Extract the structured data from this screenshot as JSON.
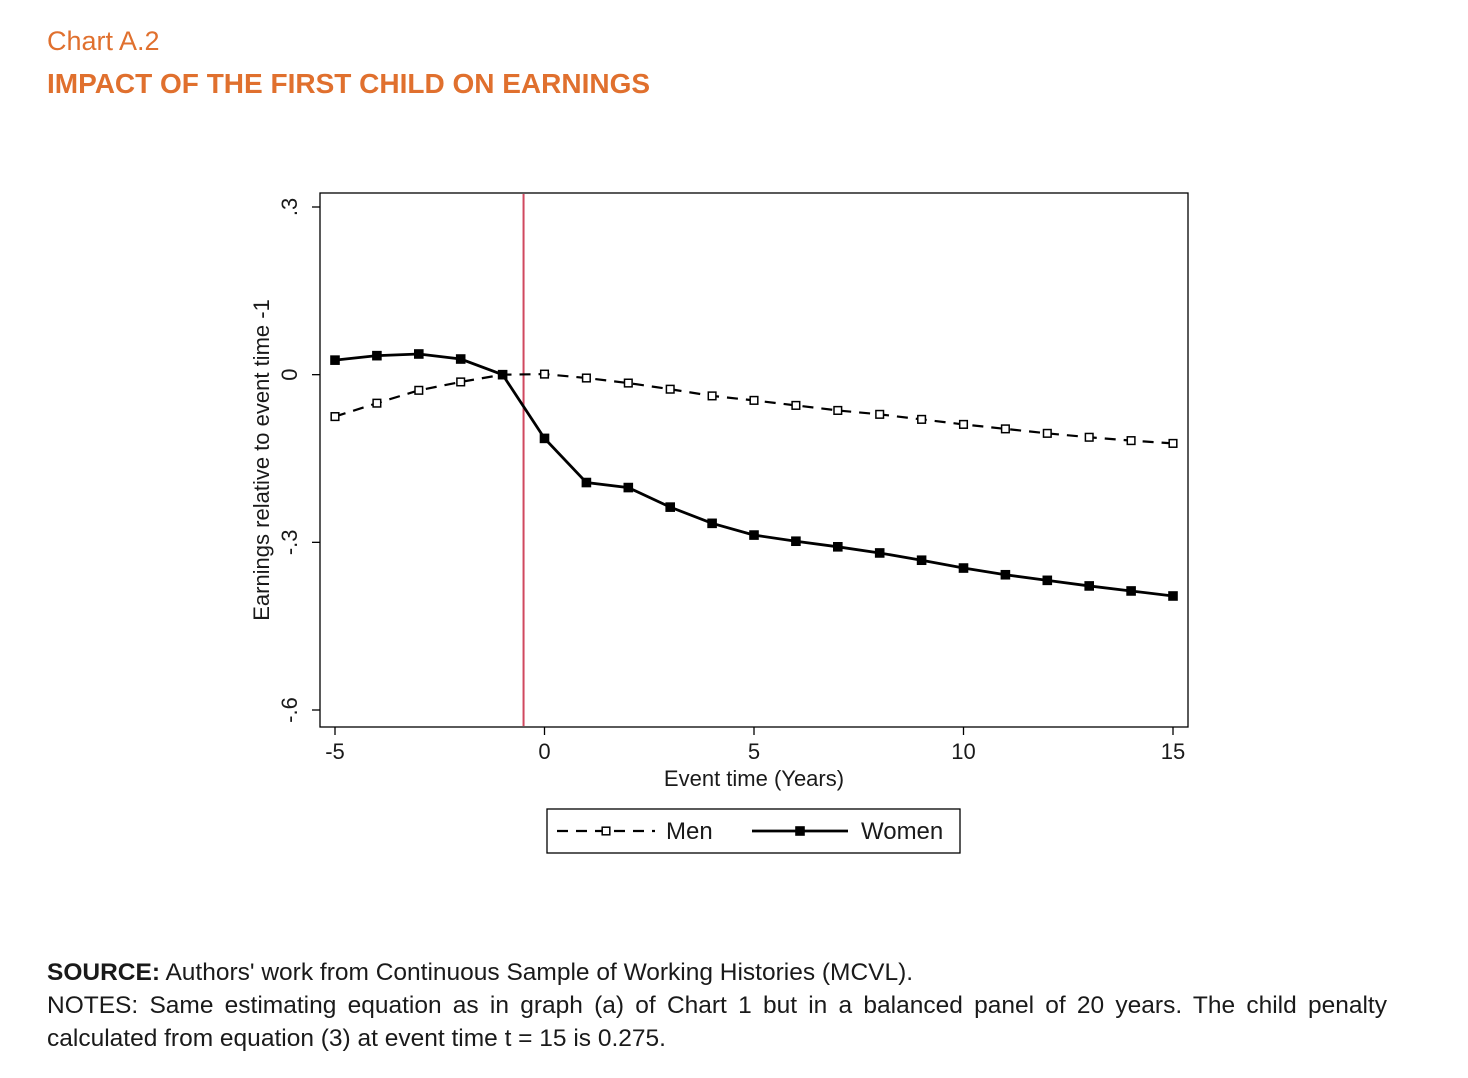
{
  "header": {
    "chart_label": "Chart A.2",
    "title": "IMPACT OF THE FIRST CHILD ON EARNINGS"
  },
  "colors": {
    "accent": "#e0702e",
    "event_line": "#d0485f",
    "series": "#000000"
  },
  "chart_data": {
    "type": "line",
    "title": "",
    "xlabel": "Event time (Years)",
    "ylabel": "Earnings relative to event time -1",
    "xlim": [
      -5,
      15
    ],
    "ylim": [
      -0.6,
      0.3
    ],
    "xticks": [
      -5,
      0,
      5,
      10,
      15
    ],
    "xtick_labels": [
      "-5",
      "0",
      "5",
      "10",
      "15"
    ],
    "yticks": [
      -0.6,
      -0.3,
      0,
      0.3
    ],
    "ytick_labels": [
      "-.6",
      "-.3",
      "0",
      ".3"
    ],
    "event_line_x": -0.5,
    "grid": false,
    "legend_position": "bottom",
    "x": [
      -5,
      -4,
      -3,
      -2,
      -1,
      0,
      1,
      2,
      3,
      4,
      5,
      6,
      7,
      8,
      9,
      10,
      11,
      12,
      13,
      14,
      15
    ],
    "series": [
      {
        "name": "Men",
        "style": "dashed",
        "marker": "hollow-square",
        "values": [
          -0.075,
          -0.051,
          -0.028,
          -0.013,
          0.0,
          0.001,
          -0.006,
          -0.015,
          -0.026,
          -0.038,
          -0.046,
          -0.055,
          -0.064,
          -0.071,
          -0.08,
          -0.089,
          -0.097,
          -0.105,
          -0.112,
          -0.118,
          -0.123
        ]
      },
      {
        "name": "Women",
        "style": "solid",
        "marker": "filled-square",
        "values": [
          0.026,
          0.034,
          0.037,
          0.028,
          0.0,
          -0.114,
          -0.193,
          -0.202,
          -0.237,
          -0.266,
          -0.287,
          -0.298,
          -0.308,
          -0.319,
          -0.332,
          -0.346,
          -0.358,
          -0.368,
          -0.378,
          -0.387,
          -0.396
        ]
      }
    ]
  },
  "footer": {
    "source_label": "SOURCE:",
    "source_text": " Authors' work from Continuous Sample of Working Histories (MCVL).",
    "notes_text": "NOTES: Same estimating equation as in graph (a) of Chart 1 but in a balanced panel of 20 years. The child penalty calculated from equation (3) at event time t = 15 is 0.275."
  }
}
